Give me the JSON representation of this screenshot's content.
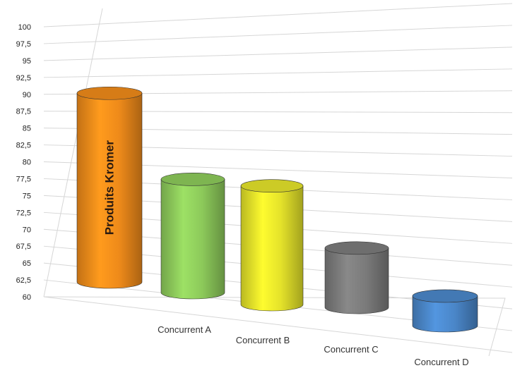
{
  "chart_data": {
    "type": "bar",
    "categories": [
      "",
      "Concurrent A",
      "Concurrent B",
      "Concurrent C",
      "Concurrent D"
    ],
    "values": [
      95,
      81,
      82,
      71,
      65.5
    ],
    "bar_labels": [
      "Produits Kromer",
      "",
      "",
      "",
      ""
    ],
    "colors": [
      "#ee8a1a",
      "#8cc95a",
      "#e3e12a",
      "#7a7a7a",
      "#4a86c8"
    ],
    "ylim": [
      60,
      100
    ],
    "yticks": [
      "60",
      "62,5",
      "65",
      "67,5",
      "70",
      "72,5",
      "75",
      "77,5",
      "80",
      "82,5",
      "85",
      "87,5",
      "90",
      "92,5",
      "95",
      "97,5",
      "100"
    ],
    "xlabel": "",
    "ylabel": "",
    "title": "",
    "grid": true,
    "style": "3d-cylinder"
  }
}
